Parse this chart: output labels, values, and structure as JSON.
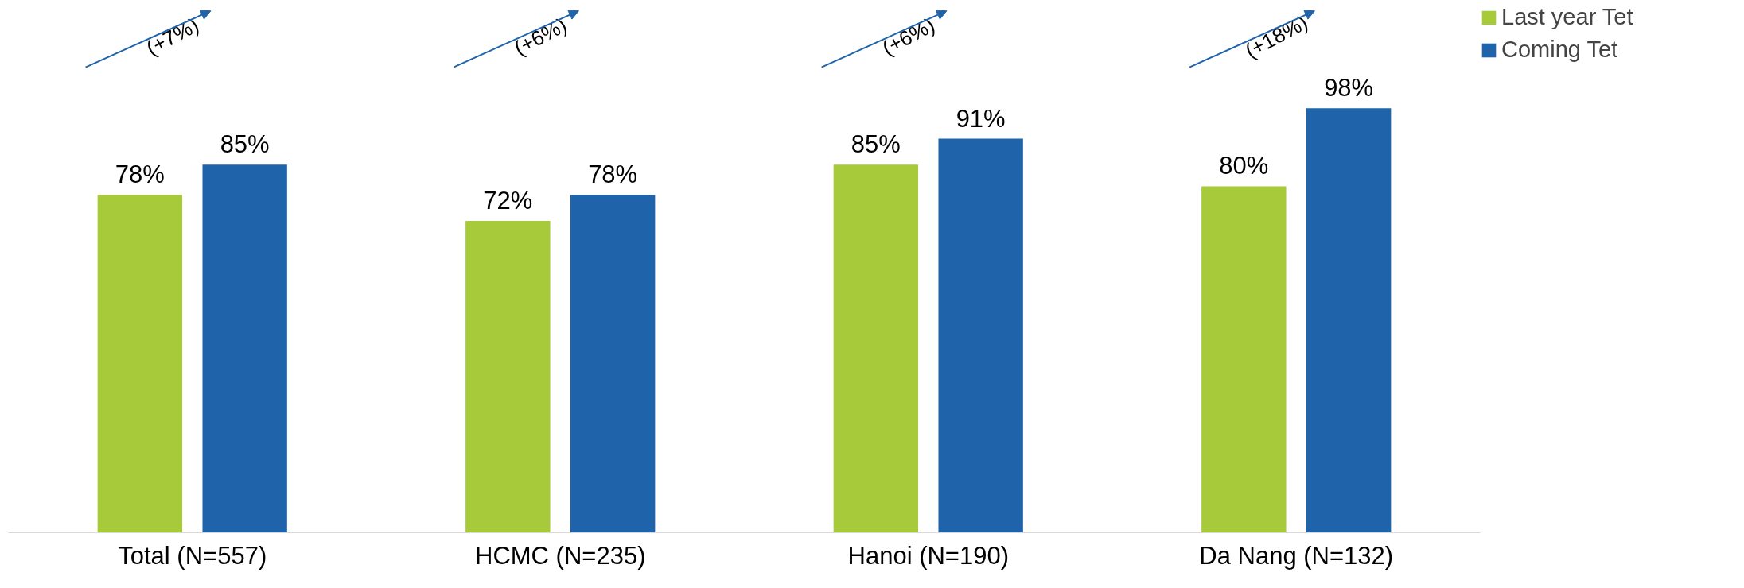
{
  "chart_data": {
    "type": "bar",
    "categories": [
      "Total (N=557)",
      "HCMC (N=235)",
      "Hanoi (N=190)",
      "Da Nang (N=132)"
    ],
    "series": [
      {
        "name": "Last year Tet",
        "color": "#a6ca3a",
        "values": [
          78,
          72,
          85,
          80
        ],
        "value_labels": [
          "78%",
          "72%",
          "85%",
          "80%"
        ]
      },
      {
        "name": "Coming Tet",
        "color": "#1f63ab",
        "values": [
          85,
          78,
          91,
          98
        ],
        "value_labels": [
          "85%",
          "78%",
          "91%",
          "98%"
        ]
      }
    ],
    "tick_labels": "x",
    "grid": false,
    "legend": "top right",
    "annotations": [
      "(+7%)",
      "(+6%)",
      "(+6%)",
      "(+18%)"
    ]
  }
}
